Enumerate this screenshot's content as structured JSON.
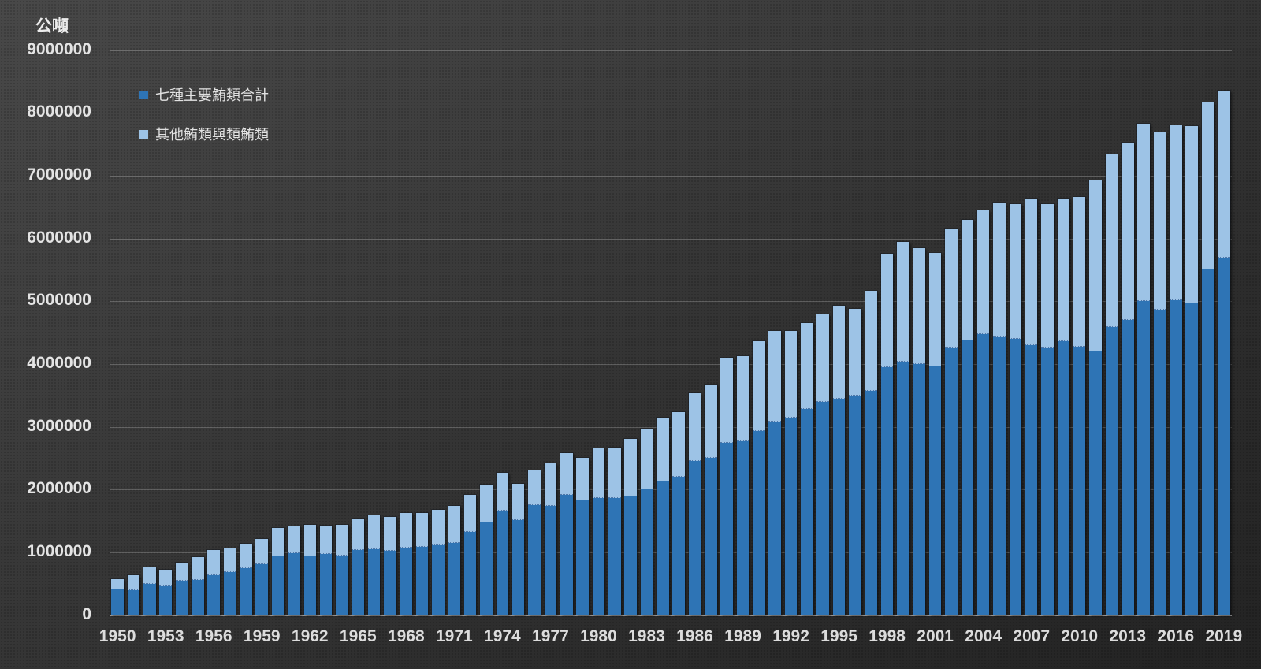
{
  "y_axis": {
    "title": "公噸",
    "tick_labels": [
      "0",
      "1000000",
      "2000000",
      "3000000",
      "4000000",
      "5000000",
      "6000000",
      "7000000",
      "8000000",
      "9000000"
    ],
    "max": 9000000
  },
  "x_axis": {
    "tick_labels": [
      "1950",
      "1953",
      "1956",
      "1959",
      "1962",
      "1965",
      "1968",
      "1971",
      "1974",
      "1977",
      "1980",
      "1983",
      "1986",
      "1989",
      "1992",
      "1995",
      "1998",
      "2001",
      "2004",
      "2007",
      "2010",
      "2013",
      "2016",
      "2019"
    ]
  },
  "legend": {
    "items": [
      {
        "label": "七種主要鮪類合計",
        "color": "#2e74b5"
      },
      {
        "label": "其他鮪類與類鮪類",
        "color": "#9dc3e6"
      }
    ]
  },
  "colors": {
    "principal_series": "#2e74b5",
    "other_series": "#9dc3e6",
    "background_dark": "#232323",
    "background_light": "#484848",
    "gridline": "rgba(255,255,255,0.22)",
    "axis_text": "#e4e4e4"
  },
  "chart_data": {
    "type": "bar",
    "stacked": true,
    "title": "",
    "ylabel": "公噸",
    "ylim": [
      0,
      9000000
    ],
    "grid": "horizontal",
    "legend_position": "top-left-inside",
    "x": [
      1950,
      1951,
      1952,
      1953,
      1954,
      1955,
      1956,
      1957,
      1958,
      1959,
      1960,
      1961,
      1962,
      1963,
      1964,
      1965,
      1966,
      1967,
      1968,
      1969,
      1970,
      1971,
      1972,
      1973,
      1974,
      1975,
      1976,
      1977,
      1978,
      1979,
      1980,
      1981,
      1982,
      1983,
      1984,
      1985,
      1986,
      1987,
      1988,
      1989,
      1990,
      1991,
      1992,
      1993,
      1994,
      1995,
      1996,
      1997,
      1998,
      1999,
      2000,
      2001,
      2002,
      2003,
      2004,
      2005,
      2006,
      2007,
      2008,
      2009,
      2010,
      2011,
      2012,
      2013,
      2014,
      2015,
      2016,
      2017,
      2018,
      2019
    ],
    "series": [
      {
        "name": "七種主要鮪類合計",
        "color": "#2e74b5",
        "values": [
          410000,
          400000,
          490000,
          460000,
          540000,
          560000,
          630000,
          680000,
          750000,
          810000,
          940000,
          980000,
          930000,
          970000,
          950000,
          1030000,
          1050000,
          1020000,
          1070000,
          1090000,
          1110000,
          1150000,
          1320000,
          1480000,
          1660000,
          1510000,
          1750000,
          1740000,
          1910000,
          1820000,
          1870000,
          1860000,
          1890000,
          2000000,
          2130000,
          2200000,
          2460000,
          2510000,
          2740000,
          2770000,
          2930000,
          3080000,
          3150000,
          3280000,
          3400000,
          3450000,
          3490000,
          3570000,
          3950000,
          4040000,
          4000000,
          3960000,
          4260000,
          4370000,
          4480000,
          4430000,
          4400000,
          4300000,
          4260000,
          4360000,
          4280000,
          4200000,
          4590000,
          4700000,
          5000000,
          4860000,
          5010000,
          4970000,
          5510000,
          5690000
        ]
      },
      {
        "name": "其他鮪類與類鮪類",
        "color": "#9dc3e6",
        "values": [
          160000,
          240000,
          270000,
          260000,
          300000,
          360000,
          400000,
          380000,
          390000,
          400000,
          450000,
          430000,
          510000,
          450000,
          490000,
          500000,
          540000,
          540000,
          550000,
          540000,
          560000,
          590000,
          590000,
          600000,
          610000,
          580000,
          550000,
          680000,
          670000,
          690000,
          780000,
          810000,
          920000,
          970000,
          1020000,
          1030000,
          1070000,
          1160000,
          1360000,
          1350000,
          1430000,
          1440000,
          1380000,
          1370000,
          1390000,
          1480000,
          1390000,
          1590000,
          1810000,
          1900000,
          1840000,
          1810000,
          1900000,
          1920000,
          1960000,
          2140000,
          2150000,
          2340000,
          2290000,
          2280000,
          2380000,
          2720000,
          2750000,
          2830000,
          2830000,
          2830000,
          2790000,
          2820000,
          2660000,
          2660000
        ]
      }
    ]
  }
}
